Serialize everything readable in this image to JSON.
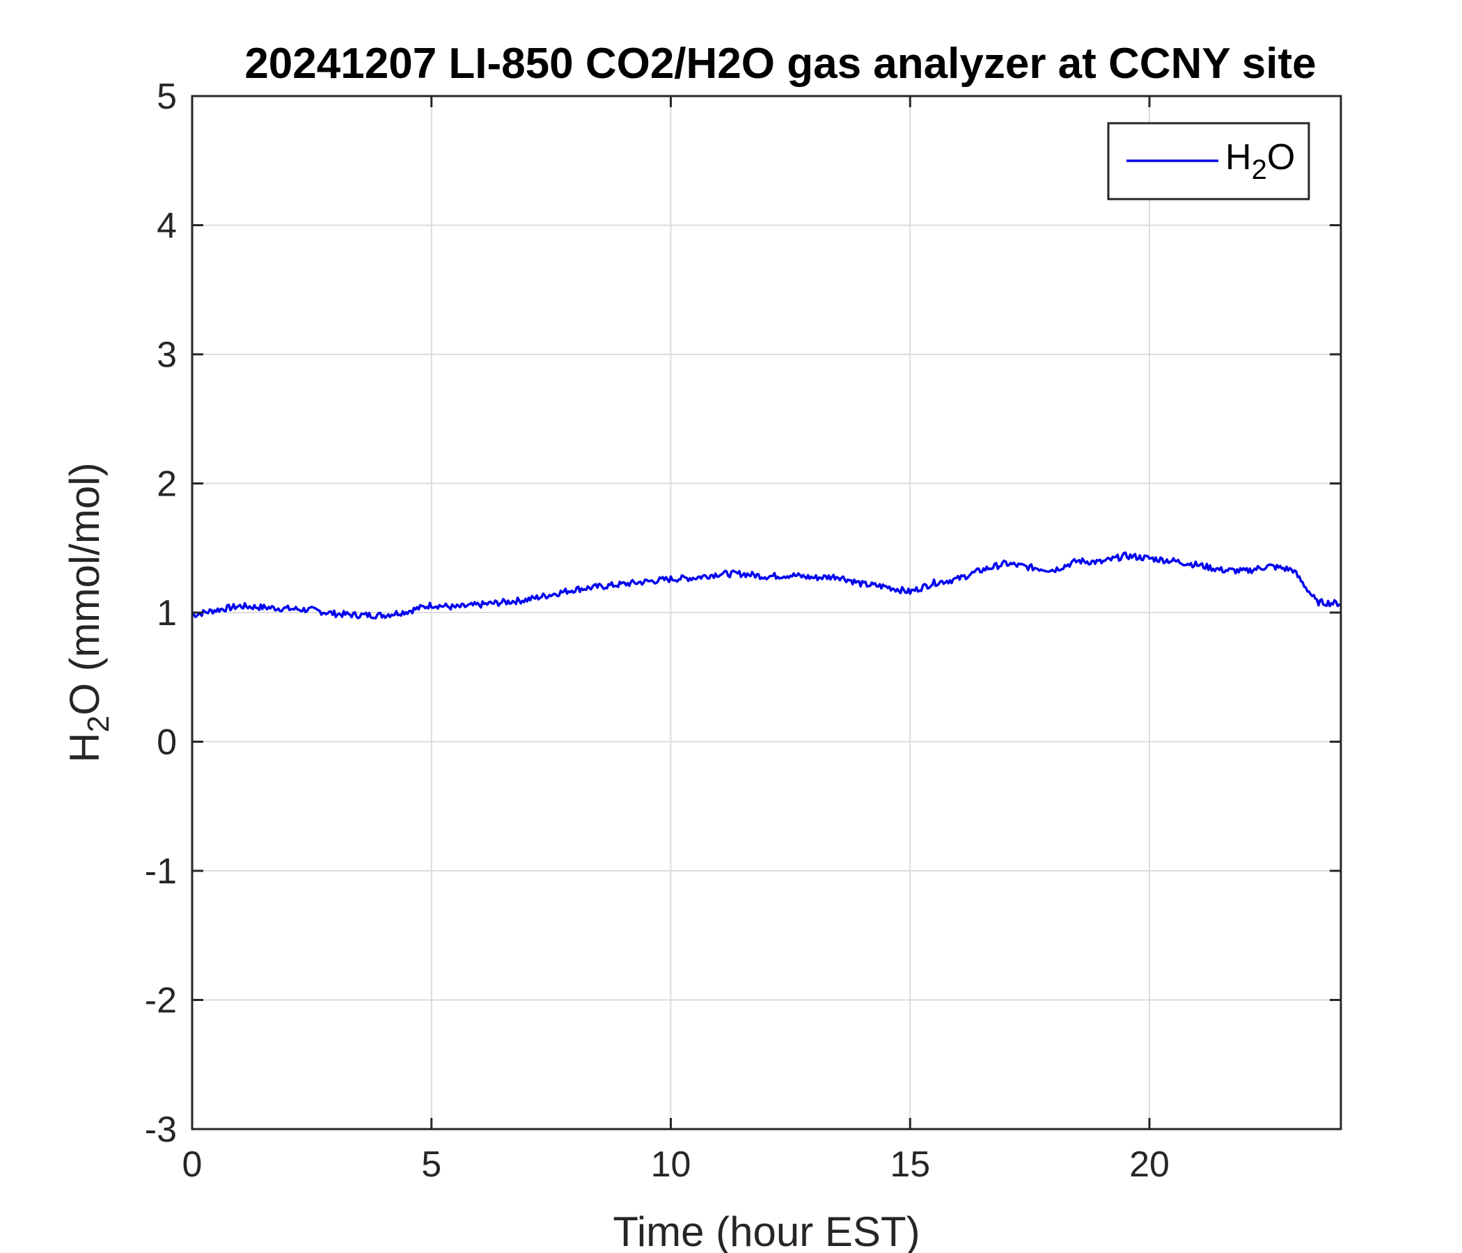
{
  "chart_data": {
    "type": "line",
    "title": "20241207 LI-850 CO2/H2O gas analyzer at CCNY site",
    "xlabel": "Time (hour EST)",
    "ylabel": {
      "main": "H",
      "sub": "2",
      "rest": "O (mmol/mol)"
    },
    "xlim": [
      0,
      24
    ],
    "ylim": [
      -3,
      5
    ],
    "xticks": [
      0,
      5,
      10,
      15,
      20
    ],
    "yticks": [
      -3,
      -2,
      -1,
      0,
      1,
      2,
      3,
      4,
      5
    ],
    "grid": true,
    "legend": {
      "placement": "top-right",
      "entries": [
        {
          "main": "H",
          "sub": "2",
          "rest": "O"
        }
      ]
    },
    "series": [
      {
        "color": "#0000ee",
        "x": [
          0,
          0.5,
          1,
          1.5,
          2,
          2.5,
          3,
          3.5,
          4,
          4.5,
          5,
          5.5,
          6,
          6.5,
          7,
          7.5,
          8,
          8.5,
          9,
          9.5,
          10,
          10.5,
          11,
          11.5,
          12,
          12.5,
          13,
          13.5,
          14,
          14.5,
          15,
          15.5,
          16,
          16.5,
          17,
          17.5,
          18,
          18.5,
          19,
          19.5,
          20,
          20.5,
          21,
          21.5,
          22,
          22.5,
          23,
          23.5,
          24
        ],
        "y": [
          0.98,
          1.02,
          1.05,
          1.04,
          1.03,
          1.02,
          0.99,
          0.98,
          0.98,
          1.01,
          1.06,
          1.04,
          1.06,
          1.08,
          1.1,
          1.14,
          1.18,
          1.2,
          1.22,
          1.24,
          1.26,
          1.27,
          1.3,
          1.3,
          1.28,
          1.29,
          1.27,
          1.28,
          1.22,
          1.2,
          1.16,
          1.23,
          1.26,
          1.33,
          1.38,
          1.35,
          1.33,
          1.4,
          1.39,
          1.44,
          1.42,
          1.4,
          1.37,
          1.33,
          1.32,
          1.36,
          1.33,
          1.08,
          1.07
        ]
      }
    ]
  }
}
